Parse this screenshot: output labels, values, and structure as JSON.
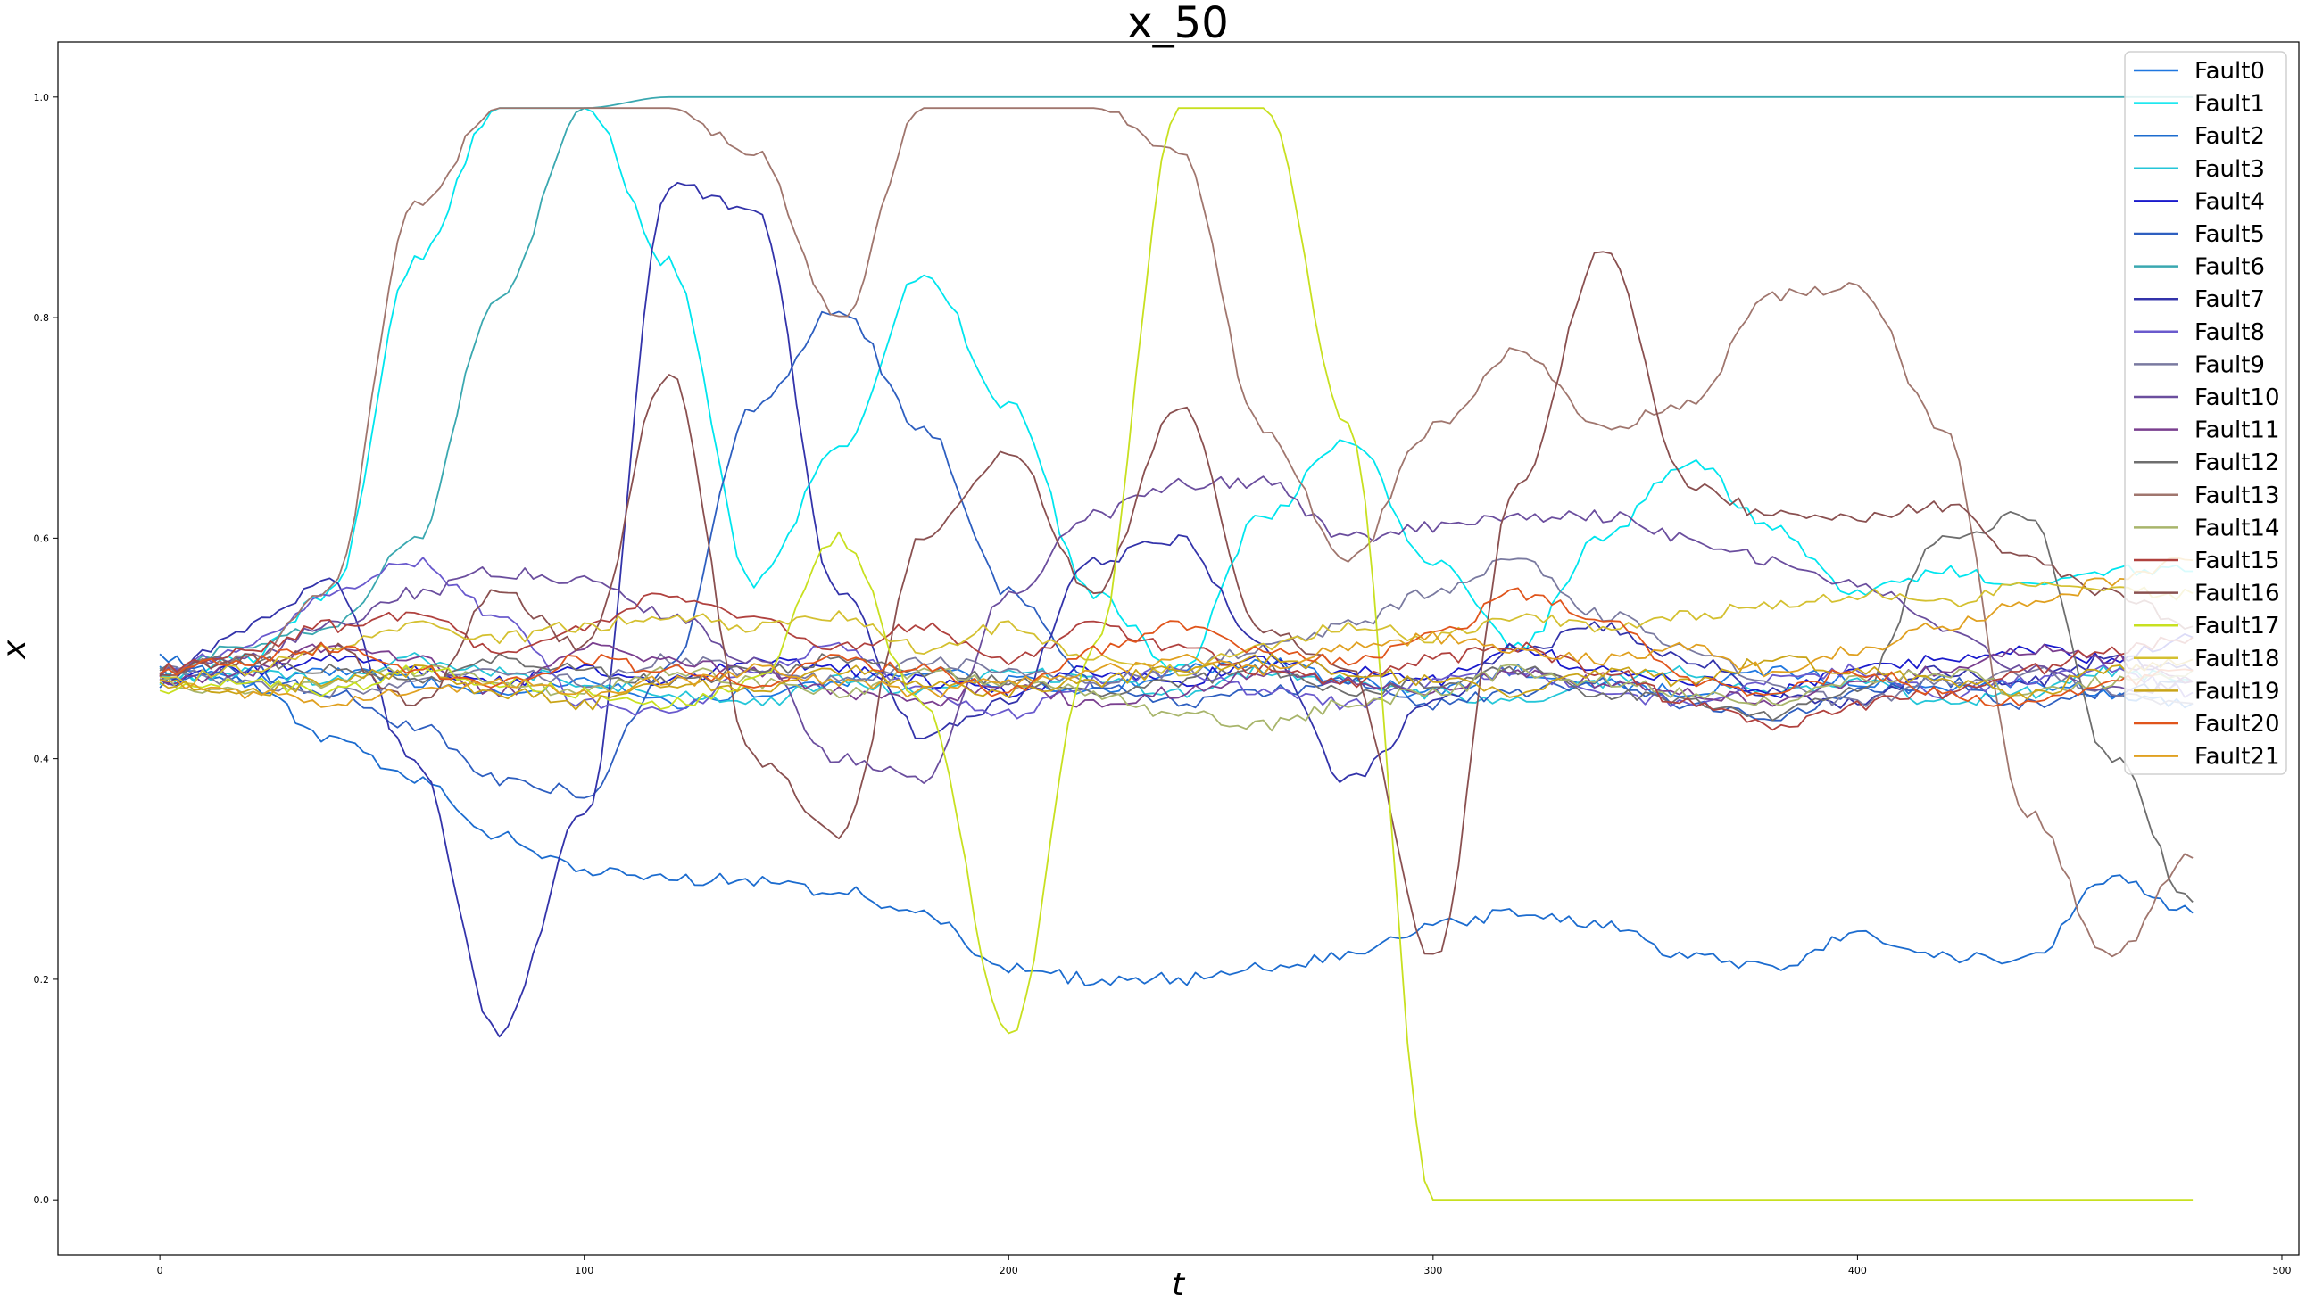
{
  "chart_data": {
    "type": "line",
    "title": "x_50",
    "xlabel": "t",
    "ylabel": "x",
    "xlim": [
      -24,
      504
    ],
    "ylim": [
      -0.05,
      1.05
    ],
    "xticks": [
      0,
      100,
      200,
      300,
      400,
      500
    ],
    "yticks": [
      0.0,
      0.2,
      0.4,
      0.6,
      0.8,
      1.0
    ],
    "xtick_labels": [
      "0",
      "100",
      "200",
      "300",
      "400",
      "500"
    ],
    "ytick_labels": [
      "0.0",
      "0.2",
      "0.4",
      "0.6",
      "0.8",
      "1.0"
    ],
    "grid": false,
    "legend_position": "top-right",
    "x": [
      0,
      20,
      40,
      60,
      80,
      100,
      120,
      140,
      160,
      180,
      200,
      220,
      240,
      260,
      280,
      300,
      320,
      340,
      360,
      380,
      400,
      420,
      440,
      460,
      479
    ],
    "series": [
      {
        "name": "Fault0",
        "color": "#1f77e0",
        "values": [
          0.48,
          0.47,
          0.48,
          0.47,
          0.46,
          0.47,
          0.45,
          0.46,
          0.47,
          0.48,
          0.47,
          0.46,
          0.48,
          0.49,
          0.47,
          0.46,
          0.48,
          0.47,
          0.46,
          0.48,
          0.47,
          0.46,
          0.47,
          0.46,
          0.45
        ]
      },
      {
        "name": "Fault1",
        "color": "#00e5ee",
        "values": [
          0.47,
          0.49,
          0.55,
          0.85,
          0.99,
          0.99,
          0.85,
          0.56,
          0.68,
          0.84,
          0.72,
          0.55,
          0.48,
          0.62,
          0.69,
          0.58,
          0.5,
          0.6,
          0.67,
          0.61,
          0.55,
          0.57,
          0.56,
          0.57,
          0.57
        ]
      },
      {
        "name": "Fault2",
        "color": "#1c6ccf",
        "values": [
          0.49,
          0.47,
          0.42,
          0.38,
          0.33,
          0.3,
          0.29,
          0.29,
          0.28,
          0.26,
          0.21,
          0.2,
          0.2,
          0.21,
          0.22,
          0.25,
          0.26,
          0.25,
          0.22,
          0.21,
          0.24,
          0.22,
          0.22,
          0.29,
          0.26
        ]
      },
      {
        "name": "Fault3",
        "color": "#24c6d8",
        "values": [
          0.47,
          0.48,
          0.47,
          0.49,
          0.48,
          0.47,
          0.46,
          0.45,
          0.47,
          0.46,
          0.48,
          0.47,
          0.46,
          0.48,
          0.47,
          0.46,
          0.45,
          0.47,
          0.48,
          0.46,
          0.47,
          0.45,
          0.46,
          0.48,
          0.47
        ]
      },
      {
        "name": "Fault4",
        "color": "#1a1acc",
        "values": [
          0.47,
          0.48,
          0.49,
          0.48,
          0.47,
          0.48,
          0.47,
          0.49,
          0.48,
          0.47,
          0.46,
          0.48,
          0.47,
          0.49,
          0.48,
          0.47,
          0.5,
          0.48,
          0.47,
          0.46,
          0.48,
          0.49,
          0.5,
          0.49,
          0.51
        ]
      },
      {
        "name": "Fault5",
        "color": "#2e5fc0",
        "values": [
          0.47,
          0.48,
          0.46,
          0.43,
          0.38,
          0.37,
          0.48,
          0.72,
          0.81,
          0.7,
          0.55,
          0.47,
          0.45,
          0.46,
          0.47,
          0.45,
          0.46,
          0.47,
          0.45,
          0.44,
          0.46,
          0.47,
          0.45,
          0.46,
          0.47
        ]
      },
      {
        "name": "Fault6",
        "color": "#3aa8b0",
        "values": [
          0.48,
          0.5,
          0.52,
          0.6,
          0.82,
          0.99,
          1.0,
          1.0,
          1.0,
          1.0,
          1.0,
          1.0,
          1.0,
          1.0,
          1.0,
          1.0,
          1.0,
          1.0,
          1.0,
          1.0,
          1.0,
          1.0,
          1.0,
          1.0,
          1.0
        ]
      },
      {
        "name": "Fault7",
        "color": "#3333aa",
        "values": [
          0.47,
          0.52,
          0.56,
          0.4,
          0.15,
          0.35,
          0.92,
          0.9,
          0.55,
          0.42,
          0.45,
          0.58,
          0.6,
          0.5,
          0.38,
          0.45,
          0.5,
          0.52,
          0.49,
          0.46,
          0.45,
          0.48,
          0.47,
          0.49,
          0.48
        ]
      },
      {
        "name": "Fault8",
        "color": "#6a5acd",
        "values": [
          0.48,
          0.5,
          0.55,
          0.58,
          0.53,
          0.45,
          0.44,
          0.48,
          0.5,
          0.46,
          0.44,
          0.47,
          0.48,
          0.46,
          0.45,
          0.47,
          0.48,
          0.46,
          0.45,
          0.47,
          0.48,
          0.46,
          0.47,
          0.48,
          0.46
        ]
      },
      {
        "name": "Fault9",
        "color": "#7a7aa0",
        "values": [
          0.48,
          0.47,
          0.46,
          0.47,
          0.48,
          0.47,
          0.49,
          0.48,
          0.47,
          0.49,
          0.48,
          0.47,
          0.48,
          0.5,
          0.52,
          0.55,
          0.58,
          0.53,
          0.5,
          0.47,
          0.45,
          0.47,
          0.48,
          0.46,
          0.45
        ]
      },
      {
        "name": "Fault10",
        "color": "#6b4e9e",
        "values": [
          0.48,
          0.49,
          0.52,
          0.55,
          0.57,
          0.56,
          0.53,
          0.49,
          0.4,
          0.38,
          0.55,
          0.62,
          0.65,
          0.65,
          0.6,
          0.61,
          0.62,
          0.62,
          0.6,
          0.58,
          0.56,
          0.52,
          0.48,
          0.46,
          0.47
        ]
      },
      {
        "name": "Fault11",
        "color": "#7a3f8f",
        "values": [
          0.47,
          0.48,
          0.5,
          0.49,
          0.46,
          0.5,
          0.49,
          0.48,
          0.46,
          0.45,
          0.47,
          0.45,
          0.46,
          0.48,
          0.47,
          0.46,
          0.48,
          0.47,
          0.46,
          0.45,
          0.47,
          0.48,
          0.5,
          0.49,
          0.47
        ]
      },
      {
        "name": "Fault12",
        "color": "#6e6e6e",
        "values": [
          0.48,
          0.49,
          0.48,
          0.47,
          0.49,
          0.48,
          0.47,
          0.48,
          0.49,
          0.48,
          0.47,
          0.46,
          0.47,
          0.48,
          0.46,
          0.47,
          0.48,
          0.46,
          0.45,
          0.44,
          0.46,
          0.6,
          0.62,
          0.4,
          0.27
        ]
      },
      {
        "name": "Fault13",
        "color": "#a0766e",
        "values": [
          0.48,
          0.49,
          0.55,
          0.9,
          0.99,
          0.99,
          0.99,
          0.95,
          0.8,
          0.99,
          0.99,
          0.99,
          0.95,
          0.7,
          0.58,
          0.7,
          0.77,
          0.7,
          0.72,
          0.82,
          0.83,
          0.7,
          0.35,
          0.22,
          0.31
        ]
      },
      {
        "name": "Fault14",
        "color": "#a8b56b",
        "values": [
          0.47,
          0.46,
          0.47,
          0.48,
          0.47,
          0.46,
          0.48,
          0.47,
          0.46,
          0.48,
          0.47,
          0.46,
          0.44,
          0.43,
          0.45,
          0.46,
          0.48,
          0.47,
          0.46,
          0.45,
          0.47,
          0.48,
          0.46,
          0.47,
          0.48
        ]
      },
      {
        "name": "Fault15",
        "color": "#b0413e",
        "values": [
          0.48,
          0.5,
          0.52,
          0.53,
          0.5,
          0.52,
          0.55,
          0.53,
          0.5,
          0.52,
          0.49,
          0.52,
          0.5,
          0.48,
          0.47,
          0.49,
          0.5,
          0.48,
          0.45,
          0.43,
          0.45,
          0.46,
          0.48,
          0.5,
          0.51
        ]
      },
      {
        "name": "Fault16",
        "color": "#8a5050",
        "values": [
          0.48,
          0.49,
          0.5,
          0.45,
          0.55,
          0.5,
          0.75,
          0.4,
          0.33,
          0.6,
          0.68,
          0.55,
          0.72,
          0.52,
          0.48,
          0.22,
          0.65,
          0.86,
          0.65,
          0.62,
          0.62,
          0.63,
          0.58,
          0.55,
          0.52
        ]
      },
      {
        "name": "Fault17",
        "color": "#c8e020",
        "values": [
          0.46,
          0.47,
          0.46,
          0.48,
          0.47,
          0.46,
          0.45,
          0.47,
          0.6,
          0.45,
          0.15,
          0.5,
          0.99,
          0.99,
          0.7,
          0.0,
          0.0,
          0.0,
          0.0,
          0.0,
          0.0,
          0.0,
          0.0,
          0.0,
          0.0
        ]
      },
      {
        "name": "Fault18",
        "color": "#d4c030",
        "values": [
          0.47,
          0.48,
          0.5,
          0.52,
          0.51,
          0.52,
          0.53,
          0.52,
          0.53,
          0.5,
          0.52,
          0.49,
          0.48,
          0.5,
          0.52,
          0.51,
          0.53,
          0.52,
          0.53,
          0.54,
          0.55,
          0.54,
          0.56,
          0.55,
          0.55
        ]
      },
      {
        "name": "Fault19",
        "color": "#c9a417",
        "values": [
          0.47,
          0.46,
          0.47,
          0.48,
          0.46,
          0.45,
          0.47,
          0.46,
          0.48,
          0.47,
          0.46,
          0.47,
          0.48,
          0.49,
          0.48,
          0.47,
          0.46,
          0.48,
          0.47,
          0.49,
          0.48,
          0.47,
          0.46,
          0.48,
          0.49
        ]
      },
      {
        "name": "Fault20",
        "color": "#e0551c",
        "values": [
          0.48,
          0.49,
          0.5,
          0.48,
          0.47,
          0.49,
          0.48,
          0.47,
          0.49,
          0.48,
          0.46,
          0.5,
          0.52,
          0.5,
          0.49,
          0.51,
          0.55,
          0.53,
          0.47,
          0.46,
          0.48,
          0.46,
          0.45,
          0.47,
          0.48
        ]
      },
      {
        "name": "Fault21",
        "color": "#e0a020",
        "values": [
          0.47,
          0.46,
          0.45,
          0.46,
          0.47,
          0.46,
          0.47,
          0.48,
          0.47,
          0.46,
          0.47,
          0.48,
          0.49,
          0.48,
          0.5,
          0.51,
          0.5,
          0.49,
          0.5,
          0.48,
          0.5,
          0.52,
          0.54,
          0.56,
          0.58
        ]
      }
    ]
  }
}
